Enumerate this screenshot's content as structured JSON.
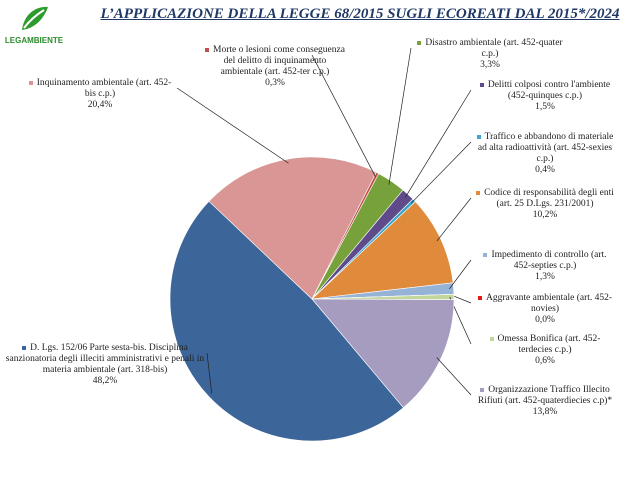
{
  "logo": "LEGAMBIENTE",
  "chart_data": {
    "type": "pie",
    "title": "L’APPLICAZIONE DELLA LEGGE 68/2015 SUGLI ECOREATI DAL 2015*/2024",
    "categories": [
      "Disastro ambientale (art. 452-quater c.p.)",
      "Delitti colposi contro l'ambiente (452-quinques c.p.)",
      "Traffico e abbandono di materiale ad alta radioattività (art. 452-sexies c.p.)",
      "Codice di responsabilità degli enti (art. 25 D.Lgs. 231/2001)",
      "Impedimento di controllo (art. 452-septies c.p.)",
      "Aggravante ambientale (art. 452-novies)",
      "Omessa Bonifica (art. 452-terdecies c.p.)",
      "Organizzazione Traffico Illecito Rifiuti (art. 452-quaterdiecies c.p)*",
      "D. Lgs. 152/06 Parte sesta-bis. Disciplina sanzionatoria degli illeciti amministrativi e penali in materia ambientale (art. 318-bis)",
      "Inquinamento ambientale (art. 452-bis c.p.)",
      "Morte o lesioni come conseguenza del delitto di inquinamento ambientale (art. 452-ter c.p.)"
    ],
    "values": [
      3.3,
      1.5,
      0.4,
      10.2,
      1.3,
      0.0,
      0.6,
      13.8,
      48.2,
      20.4,
      0.3
    ],
    "value_labels": [
      "3,3%",
      "1,5%",
      "0,4%",
      "10,2%",
      "1,3%",
      "0,0%",
      "0,6%",
      "13,8%",
      "48,2%",
      "20,4%",
      "0,3%"
    ],
    "colors": [
      "#77a23b",
      "#5f4a8b",
      "#3aa6c9",
      "#e08a3c",
      "#95b3d7",
      "#e31a1c",
      "#c3d69b",
      "#a59cc0",
      "#3c659a",
      "#d99694",
      "#c0504d"
    ]
  }
}
